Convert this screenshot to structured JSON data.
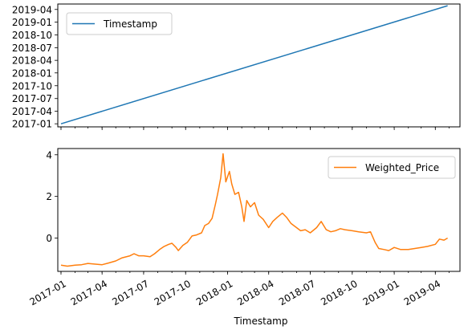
{
  "chart_data": [
    {
      "type": "line",
      "title": "",
      "xlabel": "",
      "ylabel": "",
      "xlim": [
        "2016-12-25",
        "2019-05-25"
      ],
      "ylim": [
        "2016-12-10",
        "2019-05-10"
      ],
      "x_ticks": [
        "2017-01",
        "2017-04",
        "2017-07",
        "2017-10",
        "2018-01",
        "2018-04",
        "2018-07",
        "2018-10",
        "2019-01",
        "2019-04"
      ],
      "y_ticks": [
        "2017-01",
        "2017-04",
        "2017-07",
        "2017-10",
        "2018-01",
        "2018-04",
        "2018-07",
        "2018-10",
        "2019-01",
        "2019-04"
      ],
      "x_tick_labels_visible": false,
      "legend": "top-left",
      "grid": false,
      "series": [
        {
          "name": "Timestamp",
          "color": "#1f77b4",
          "x": [
            "2017-01-01",
            "2019-04-28"
          ],
          "y": [
            "2017-01-01",
            "2019-04-28"
          ]
        }
      ]
    },
    {
      "type": "line",
      "title": "",
      "xlabel": "Timestamp",
      "ylabel": "",
      "xlim": [
        "2016-12-25",
        "2019-05-25"
      ],
      "ylim": [
        -1.6,
        4.3
      ],
      "x_ticks": [
        "2017-01",
        "2017-04",
        "2017-07",
        "2017-10",
        "2018-01",
        "2018-04",
        "2018-07",
        "2018-10",
        "2019-01",
        "2019-04"
      ],
      "y_ticks": [
        0,
        2,
        4
      ],
      "legend": "top-right",
      "grid": false,
      "series": [
        {
          "name": "Weighted_Price",
          "color": "#ff7f0e",
          "x": [
            "2017-01-01",
            "2017-01-15",
            "2017-02-01",
            "2017-02-15",
            "2017-03-01",
            "2017-03-15",
            "2017-04-01",
            "2017-04-15",
            "2017-05-01",
            "2017-05-15",
            "2017-06-01",
            "2017-06-10",
            "2017-06-20",
            "2017-07-01",
            "2017-07-15",
            "2017-07-25",
            "2017-08-05",
            "2017-08-15",
            "2017-08-25",
            "2017-09-01",
            "2017-09-10",
            "2017-09-15",
            "2017-09-25",
            "2017-10-05",
            "2017-10-15",
            "2017-10-25",
            "2017-11-05",
            "2017-11-12",
            "2017-11-20",
            "2017-11-28",
            "2017-12-05",
            "2017-12-10",
            "2017-12-17",
            "2017-12-22",
            "2017-12-28",
            "2018-01-05",
            "2018-01-10",
            "2018-01-17",
            "2018-01-25",
            "2018-02-01",
            "2018-02-06",
            "2018-02-12",
            "2018-02-20",
            "2018-03-01",
            "2018-03-10",
            "2018-03-20",
            "2018-04-01",
            "2018-04-10",
            "2018-04-20",
            "2018-05-01",
            "2018-05-10",
            "2018-05-20",
            "2018-06-01",
            "2018-06-10",
            "2018-06-20",
            "2018-07-01",
            "2018-07-15",
            "2018-07-25",
            "2018-08-05",
            "2018-08-15",
            "2018-08-25",
            "2018-09-05",
            "2018-09-15",
            "2018-10-01",
            "2018-10-15",
            "2018-11-01",
            "2018-11-10",
            "2018-11-20",
            "2018-11-28",
            "2018-12-10",
            "2018-12-20",
            "2019-01-01",
            "2019-01-15",
            "2019-02-01",
            "2019-02-15",
            "2019-03-01",
            "2019-03-15",
            "2019-04-01",
            "2019-04-10",
            "2019-04-20",
            "2019-04-28"
          ],
          "y": [
            -1.3,
            -1.35,
            -1.3,
            -1.28,
            -1.22,
            -1.25,
            -1.28,
            -1.2,
            -1.1,
            -0.95,
            -0.85,
            -0.75,
            -0.85,
            -0.85,
            -0.9,
            -0.75,
            -0.55,
            -0.4,
            -0.3,
            -0.25,
            -0.45,
            -0.6,
            -0.35,
            -0.2,
            0.1,
            0.15,
            0.25,
            0.6,
            0.7,
            0.95,
            1.6,
            2.1,
            2.9,
            4.05,
            2.7,
            3.2,
            2.6,
            2.1,
            2.2,
            1.5,
            0.8,
            1.8,
            1.5,
            1.7,
            1.1,
            0.9,
            0.5,
            0.8,
            1.0,
            1.2,
            1.0,
            0.7,
            0.5,
            0.35,
            0.4,
            0.25,
            0.5,
            0.8,
            0.4,
            0.3,
            0.35,
            0.45,
            0.4,
            0.35,
            0.3,
            0.25,
            0.3,
            -0.2,
            -0.5,
            -0.55,
            -0.6,
            -0.45,
            -0.55,
            -0.55,
            -0.5,
            -0.45,
            -0.4,
            -0.3,
            -0.05,
            -0.1,
            0.0
          ]
        }
      ]
    }
  ]
}
